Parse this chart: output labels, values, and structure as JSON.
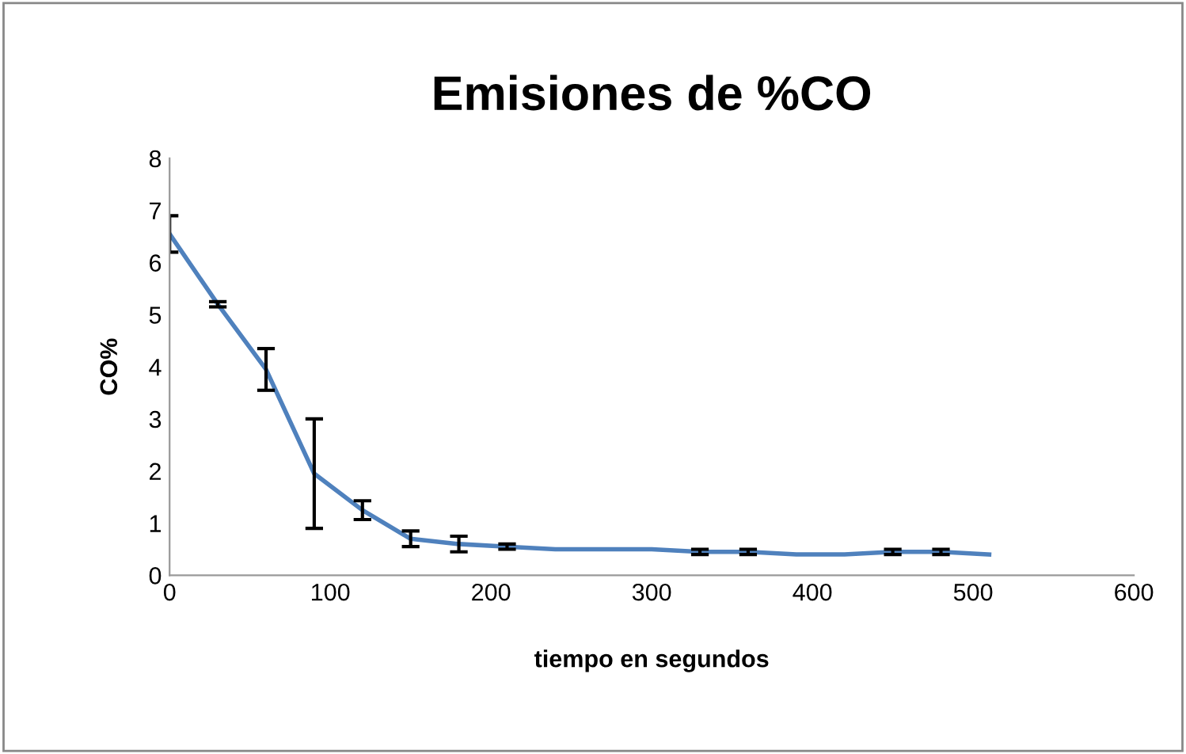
{
  "chart_data": {
    "type": "line",
    "title": "Emisiones de %CO",
    "xlabel": "tiempo en segundos",
    "ylabel": "CO%",
    "x": [
      0,
      30,
      60,
      90,
      120,
      150,
      180,
      210,
      240,
      270,
      300,
      330,
      360,
      390,
      420,
      450,
      480,
      510
    ],
    "series": [
      {
        "color": "#4f81bd",
        "values": [
          6.55,
          5.2,
          3.95,
          1.95,
          1.25,
          0.7,
          0.6,
          0.55,
          0.5,
          0.5,
          0.5,
          0.45,
          0.45,
          0.4,
          0.4,
          0.45,
          0.45,
          0.4
        ],
        "errors": [
          0.35,
          0.05,
          0.4,
          1.05,
          0.18,
          0.15,
          0.15,
          0.05,
          null,
          null,
          null,
          0.05,
          0.05,
          null,
          null,
          0.05,
          0.05,
          null
        ]
      }
    ],
    "xlim": [
      0,
      600
    ],
    "xticks": [
      0,
      100,
      200,
      300,
      400,
      500,
      600
    ],
    "ylim": [
      0,
      8
    ],
    "yticks": [
      0,
      1,
      2,
      3,
      4,
      5,
      6,
      7,
      8
    ],
    "grid": false,
    "legend": false,
    "marker": "none",
    "line_style": "solid"
  }
}
